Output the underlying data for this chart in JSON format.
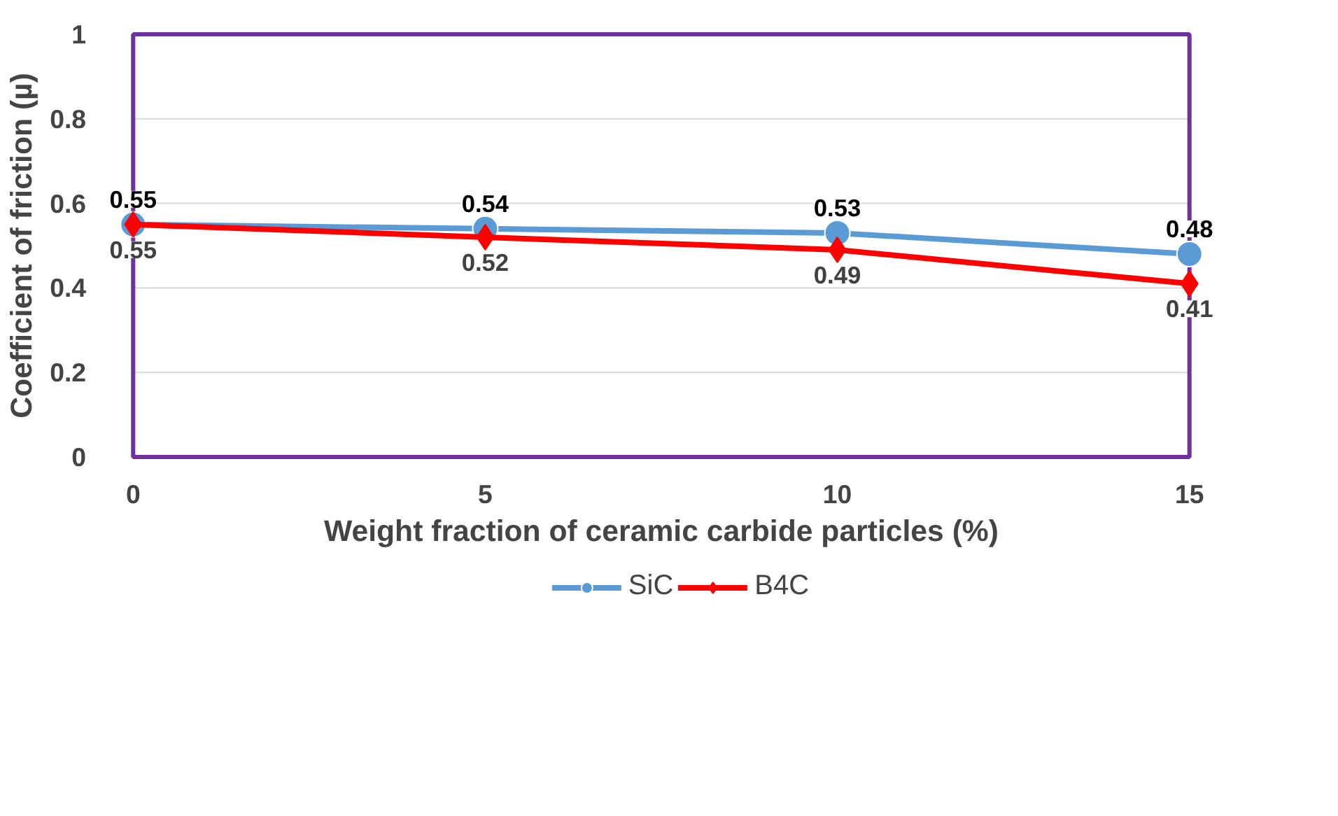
{
  "chart_data": {
    "type": "line",
    "xlabel": "Weight fraction of ceramic carbide particles (%)",
    "ylabel": "Coefficient of friction (µ)",
    "x": [
      0,
      5,
      10,
      15
    ],
    "xlim": [
      0,
      15
    ],
    "xticks": [
      0,
      5,
      10,
      15
    ],
    "ylim": [
      0,
      1
    ],
    "yticks": [
      0,
      0.2,
      0.4,
      0.6,
      0.8,
      1
    ],
    "series": [
      {
        "name": "SiC",
        "color": "#5b9bd5",
        "marker": "circle",
        "values": [
          0.55,
          0.54,
          0.53,
          0.48
        ]
      },
      {
        "name": "B4C",
        "color": "#ff0000",
        "marker": "diamond",
        "values": [
          0.55,
          0.52,
          0.49,
          0.41
        ]
      }
    ],
    "data_labels": true,
    "grid": "y",
    "legend": "bottom",
    "line_style": "solid"
  }
}
